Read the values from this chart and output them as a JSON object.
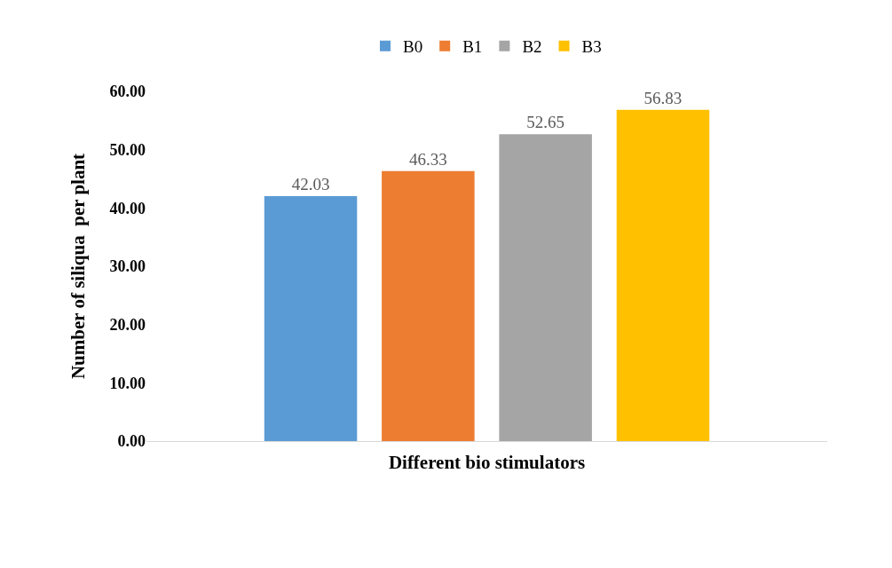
{
  "chart_data": {
    "type": "bar",
    "xlabel": "Different bio stimulators",
    "ylabel": "Number of siliqua  per plant",
    "categories": [
      null
    ],
    "series": [
      {
        "name": "B0",
        "color": "#5b9bd5",
        "values": [
          42.03
        ]
      },
      {
        "name": "B1",
        "color": "#ed7d31",
        "values": [
          46.33
        ]
      },
      {
        "name": "B2",
        "color": "#a5a5a5",
        "values": [
          52.65
        ]
      },
      {
        "name": "B3",
        "color": "#ffc000",
        "values": [
          56.83
        ]
      }
    ],
    "ylim": [
      0,
      60
    ],
    "yticks": [
      {
        "value": 0,
        "label": "0.00"
      },
      {
        "value": 10,
        "label": "10.00"
      },
      {
        "value": 20,
        "label": "20.00"
      },
      {
        "value": 30,
        "label": "30.00"
      },
      {
        "value": 40,
        "label": "40.00"
      },
      {
        "value": 50,
        "label": "50.00"
      },
      {
        "value": 60,
        "label": "60.00"
      }
    ],
    "data_labels": true,
    "legend": "top",
    "grid": false
  }
}
